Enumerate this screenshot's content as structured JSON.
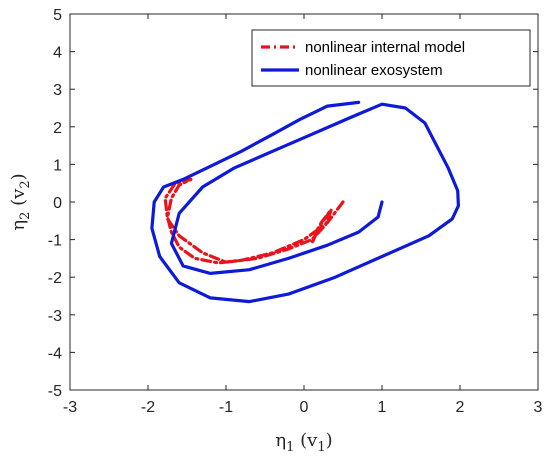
{
  "chart_data": {
    "type": "line",
    "xlabel": {
      "main": "η",
      "sub": "1",
      "unit_open": " (v",
      "unit_sub": "1",
      "unit_close": ")"
    },
    "ylabel": {
      "main": "η",
      "sub": "2",
      "unit_open": " (v",
      "unit_sub": "2",
      "unit_close": ")"
    },
    "xlim": [
      -3,
      3
    ],
    "ylim": [
      -5,
      5
    ],
    "xticks": [
      "-3",
      "-2",
      "-1",
      "0",
      "1",
      "2",
      "3"
    ],
    "yticks": [
      "5",
      "4",
      "3",
      "2",
      "1",
      "0",
      "-1",
      "-2",
      "-3",
      "-4",
      "-5"
    ],
    "grid": false,
    "legend_placement": "top-right",
    "series": [
      {
        "name": "nonlinear internal model",
        "color": "#e8141c",
        "style": "dash-dot",
        "x": [
          0.5,
          0.3,
          0.0,
          -0.4,
          -0.8,
          -1.1,
          -1.4,
          -1.6,
          -1.7,
          -1.75,
          -1.7,
          -1.6,
          -1.45,
          -1.65,
          -1.78,
          -1.75,
          -1.6,
          -1.3,
          -1.0,
          -0.6,
          -0.2,
          0.1,
          0.28,
          0.35,
          0.22,
          0.1,
          0.18,
          0.3
        ],
        "y": [
          0.0,
          -0.55,
          -1.0,
          -1.35,
          -1.55,
          -1.62,
          -1.5,
          -1.2,
          -0.8,
          -0.4,
          0.1,
          0.45,
          0.6,
          0.5,
          0.1,
          -0.45,
          -0.9,
          -1.35,
          -1.6,
          -1.5,
          -1.25,
          -1.0,
          -0.6,
          -0.2,
          -0.55,
          -1.1,
          -0.7,
          -0.35
        ]
      },
      {
        "name": "nonlinear exosystem",
        "color": "#0d1ad8",
        "style": "solid",
        "x": [
          1.0,
          0.95,
          0.7,
          0.3,
          -0.2,
          -0.7,
          -1.2,
          -1.55,
          -1.7,
          -1.6,
          -1.3,
          -0.9,
          -0.4,
          0.1,
          0.6,
          1.0,
          1.3,
          1.55,
          1.7,
          1.85,
          1.97,
          1.98,
          1.9,
          1.6,
          1.0,
          0.4,
          -0.2,
          -0.7,
          -1.2,
          -1.6,
          -1.85,
          -1.95,
          -1.92,
          -1.8,
          -1.55,
          -1.2,
          -0.8,
          -0.4,
          -0.05,
          0.3,
          0.7
        ],
        "y": [
          0.0,
          -0.4,
          -0.8,
          -1.15,
          -1.5,
          -1.8,
          -1.9,
          -1.7,
          -1.1,
          -0.3,
          0.4,
          0.9,
          1.35,
          1.8,
          2.25,
          2.6,
          2.5,
          2.1,
          1.5,
          0.9,
          0.3,
          -0.1,
          -0.45,
          -0.9,
          -1.45,
          -2.0,
          -2.45,
          -2.65,
          -2.55,
          -2.15,
          -1.45,
          -0.7,
          0.0,
          0.4,
          0.6,
          0.95,
          1.35,
          1.8,
          2.2,
          2.55,
          2.65
        ]
      }
    ]
  }
}
